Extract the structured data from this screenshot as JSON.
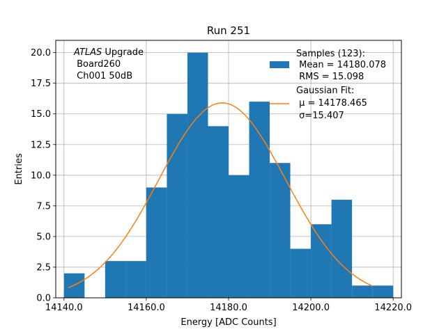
{
  "chart_data": {
    "type": "bar",
    "title": "Run 251",
    "xlabel": "Energy [ADC Counts]",
    "ylabel": "Entries",
    "xlim": [
      14138.0,
      14222.0
    ],
    "ylim": [
      0.0,
      21.0
    ],
    "grid": true,
    "legend_placement": "top-right",
    "x_ticks": [
      14140.0,
      14160.0,
      14180.0,
      14200.0,
      14220.0
    ],
    "x_tick_labels": [
      "14140.0",
      "14160.0",
      "14180.0",
      "14200.0",
      "14220.0"
    ],
    "y_ticks": [
      0.0,
      2.5,
      5.0,
      7.5,
      10.0,
      12.5,
      15.0,
      17.5,
      20.0
    ],
    "y_tick_labels": [
      "0.0",
      "2.5",
      "5.0",
      "7.5",
      "10.0",
      "12.5",
      "15.0",
      "17.5",
      "20.0"
    ],
    "histogram": {
      "bin_edges": [
        14140,
        14145,
        14150,
        14155,
        14160,
        14165,
        14170,
        14175,
        14180,
        14185,
        14190,
        14195,
        14200,
        14205,
        14210,
        14215,
        14220
      ],
      "counts": [
        2,
        0,
        3,
        3,
        9,
        15,
        20,
        14,
        10,
        16,
        11,
        4,
        6,
        8,
        1,
        1
      ],
      "color": "#1f77b4"
    },
    "fit": {
      "mu": 14178.465,
      "sigma": 15.407,
      "amplitude": 15.9,
      "x_range": [
        14141,
        14215
      ],
      "color": "#ff7f0e"
    },
    "legend": [
      {
        "kind": "patch",
        "color": "#1f77b4",
        "lines": [
          "Samples (123):",
          " Mean = 14180.078",
          " RMS = 15.098"
        ]
      },
      {
        "kind": "line",
        "color": "#ff7f0e",
        "lines": [
          "Gaussian Fit:",
          " μ = 14178.465",
          " σ=15.407"
        ]
      }
    ],
    "annotation": {
      "line1_italic": "ATLAS",
      "line1_rest": " Upgrade",
      "line2": " Board260",
      "line3": " Ch001 50dB"
    }
  }
}
